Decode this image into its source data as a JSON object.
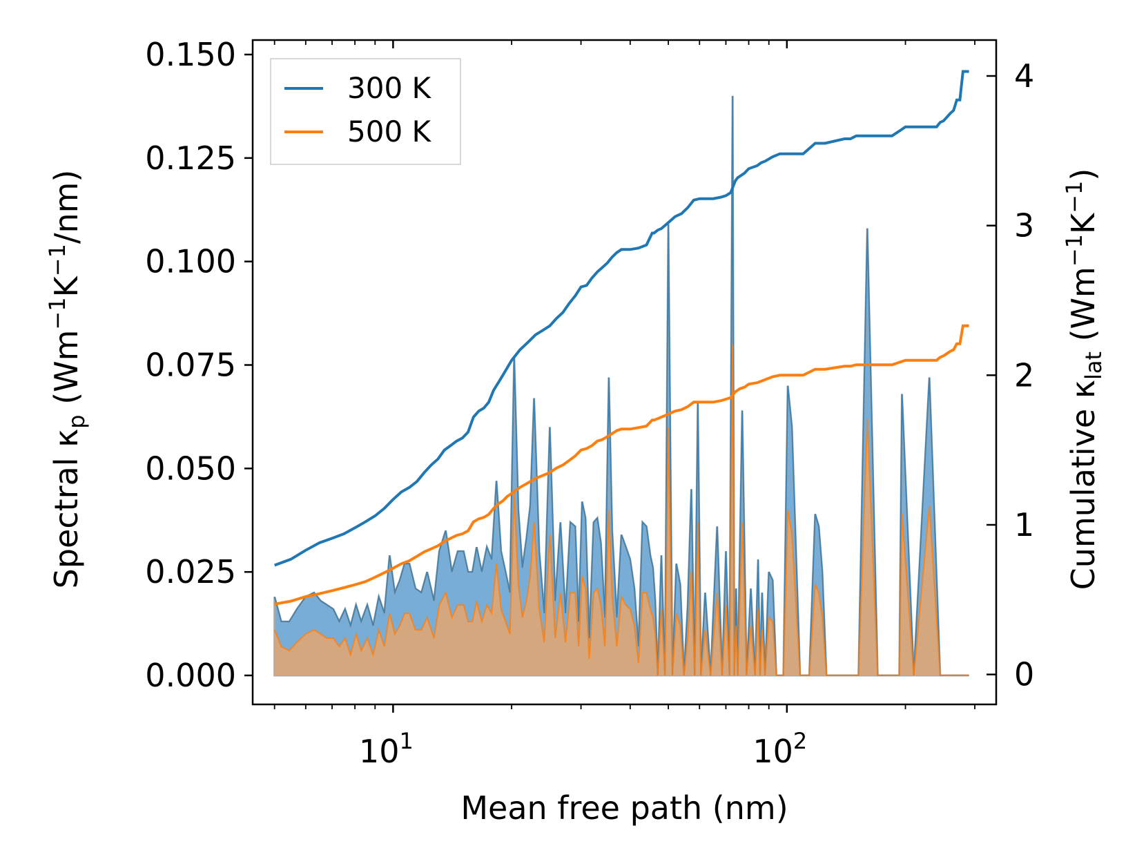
{
  "chart_data": {
    "type": "line+area",
    "title": "",
    "xlabel": "Mean free path (nm)",
    "xscale": "log",
    "xlim": [
      4.4,
      340
    ],
    "x_ticks": [
      {
        "value": 10,
        "label_base": "10",
        "label_exp": "1"
      },
      {
        "value": 100,
        "label_base": "10",
        "label_exp": "2"
      }
    ],
    "ylabel_left": {
      "pre": "Spectral κ",
      "sub": "p",
      "mid": " (Wm",
      "sup1": "−1",
      "k": "K",
      "sup2": "−1",
      "post": "/nm)"
    },
    "ylabel_right": {
      "pre": "Cumulative κ",
      "sub": "lat",
      "mid": " (Wm",
      "sup1": "−1",
      "k": "K",
      "sup2": "−1",
      "post": ")"
    },
    "ylim_left": [
      -0.007,
      0.1535
    ],
    "ylim_right": [
      -0.2,
      4.24
    ],
    "y_ticks_left": [
      "0.000",
      "0.025",
      "0.050",
      "0.075",
      "0.100",
      "0.125",
      "0.150"
    ],
    "y_ticks_right": [
      "0",
      "1",
      "2",
      "3",
      "4"
    ],
    "legend": {
      "placement": "top-left",
      "entries": [
        "300 K",
        "500 K"
      ]
    },
    "colors": {
      "300K": "#1f77b4",
      "500K": "#ff7f0e",
      "fill300": "#5f9fd0",
      "fill500": "#d9a679"
    },
    "spectral": {
      "x": [
        5.0,
        5.2,
        5.45,
        5.7,
        6.0,
        6.3,
        6.55,
        6.8,
        7.05,
        7.3,
        7.55,
        7.8,
        8.05,
        8.3,
        8.6,
        8.9,
        9.2,
        9.5,
        9.8,
        10.1,
        10.4,
        10.7,
        11.0,
        11.4,
        11.8,
        12.2,
        12.7,
        13.1,
        13.6,
        14.1,
        14.6,
        15.1,
        15.5,
        15.9,
        16.3,
        16.8,
        17.3,
        17.8,
        18.3,
        18.8,
        19.3,
        19.8,
        20.3,
        20.8,
        21.3,
        21.8,
        22.3,
        22.8,
        23.5,
        24.2,
        25.0,
        25.8,
        26.6,
        27.4,
        28.2,
        29.0,
        29.6,
        30.2,
        30.8,
        31.5,
        32.3,
        33.0,
        33.7,
        34.5,
        35.3,
        36.0,
        37.0,
        38.0,
        39.0,
        40.0,
        41.0,
        42.0,
        43.0,
        44.0,
        45.0,
        45.7,
        46.3,
        47.0,
        48.0,
        49.0,
        50.0,
        51.2,
        52.4,
        53.6,
        54.8,
        56.0,
        57.2,
        58.3,
        59.4,
        60.5,
        62.0,
        64.0,
        66.5,
        68.5,
        70.0,
        71.5,
        72.8,
        73.5,
        74.3,
        75.0,
        77.0,
        79.0,
        81.0,
        83.0,
        84.5,
        85.5,
        86.5,
        88.0,
        90.0,
        92.0,
        94.0,
        96.0,
        98.0,
        100.5,
        103.0,
        108.0,
        114.0,
        118.0,
        120.5,
        123.0,
        126.0,
        132.0,
        138.0,
        141.5,
        145.0,
        148.0,
        152.0,
        160.0,
        170.0,
        180.0,
        187.0,
        190.0,
        193.0,
        196.0,
        210.0,
        230.0,
        245.0,
        250.0,
        255.0,
        262.0,
        266.0,
        270.0,
        274.0,
        280.0,
        285.0,
        290.0
      ],
      "k300": [
        0.019,
        0.013,
        0.013,
        0.016,
        0.019,
        0.02,
        0.018,
        0.017,
        0.016,
        0.013,
        0.016,
        0.012,
        0.017,
        0.013,
        0.017,
        0.012,
        0.019,
        0.015,
        0.029,
        0.02,
        0.023,
        0.027,
        0.027,
        0.021,
        0.02,
        0.025,
        0.018,
        0.03,
        0.035,
        0.025,
        0.03,
        0.03,
        0.025,
        0.025,
        0.031,
        0.025,
        0.031,
        0.028,
        0.047,
        0.03,
        0.025,
        0.02,
        0.077,
        0.04,
        0.026,
        0.033,
        0.041,
        0.067,
        0.03,
        0.015,
        0.06,
        0.018,
        0.037,
        0.015,
        0.037,
        0.036,
        0.013,
        0.042,
        0.038,
        0.009,
        0.037,
        0.038,
        0.032,
        0.014,
        0.072,
        0.035,
        0.014,
        0.034,
        0.031,
        0.028,
        0.021,
        0.007,
        0.037,
        0.036,
        0.029,
        0.026,
        0.018,
        0.0,
        0.029,
        0.0,
        0.109,
        0.0,
        0.027,
        0.022,
        0.0,
        0.017,
        0.045,
        0.0,
        0.066,
        0.0,
        0.02,
        0.0,
        0.036,
        0.0,
        0.03,
        0.0,
        0.14,
        0.0,
        0.021,
        0.0,
        0.064,
        0.0,
        0.021,
        0.0,
        0.028,
        0.0,
        0.02,
        0.0,
        0.025,
        0.023,
        0.0,
        0.0,
        0.0,
        0.07,
        0.06,
        0.0,
        0.0,
        0.039,
        0.036,
        0.025,
        0.0,
        0.0,
        0.0,
        0.0,
        0.0,
        0.0,
        0.0,
        0.108,
        0.0,
        0.0,
        0.0,
        0.0,
        0.0,
        0.068,
        0.0,
        0.072,
        0.0,
        0.0,
        0.0,
        0.0,
        0.0,
        0.0,
        0.0,
        0.0,
        0.0,
        0.0,
        0.0,
        0.0,
        0.0,
        0.0,
        0.0
      ],
      "k500": [
        0.011,
        0.007,
        0.006,
        0.008,
        0.01,
        0.011,
        0.01,
        0.009,
        0.009,
        0.007,
        0.009,
        0.005,
        0.01,
        0.006,
        0.009,
        0.005,
        0.011,
        0.007,
        0.015,
        0.01,
        0.012,
        0.015,
        0.015,
        0.011,
        0.011,
        0.014,
        0.009,
        0.017,
        0.02,
        0.014,
        0.017,
        0.017,
        0.013,
        0.013,
        0.018,
        0.013,
        0.017,
        0.015,
        0.027,
        0.016,
        0.013,
        0.01,
        0.044,
        0.022,
        0.014,
        0.018,
        0.024,
        0.037,
        0.016,
        0.008,
        0.034,
        0.009,
        0.02,
        0.008,
        0.02,
        0.02,
        0.007,
        0.024,
        0.021,
        0.004,
        0.02,
        0.021,
        0.017,
        0.007,
        0.04,
        0.019,
        0.007,
        0.019,
        0.017,
        0.016,
        0.012,
        0.003,
        0.02,
        0.02,
        0.016,
        0.014,
        0.01,
        0.0,
        0.016,
        0.0,
        0.06,
        0.0,
        0.015,
        0.012,
        0.0,
        0.009,
        0.025,
        0.0,
        0.037,
        0.0,
        0.011,
        0.0,
        0.02,
        0.0,
        0.017,
        0.0,
        0.08,
        0.0,
        0.012,
        0.0,
        0.037,
        0.0,
        0.012,
        0.0,
        0.016,
        0.0,
        0.011,
        0.0,
        0.014,
        0.013,
        0.0,
        0.0,
        0.0,
        0.04,
        0.034,
        0.0,
        0.0,
        0.022,
        0.02,
        0.014,
        0.0,
        0.0,
        0.0,
        0.0,
        0.0,
        0.0,
        0.0,
        0.062,
        0.0,
        0.0,
        0.0,
        0.0,
        0.0,
        0.039,
        0.0,
        0.041,
        0.0,
        0.0,
        0.0,
        0.0,
        0.0,
        0.0,
        0.0,
        0.0,
        0.0,
        0.0,
        0.0,
        0.0,
        0.0,
        0.0,
        0.0
      ]
    },
    "cumulative": {
      "k300_x": [
        5.0,
        5.5,
        6.0,
        6.5,
        7.0,
        7.5,
        8.0,
        8.5,
        9.0,
        9.5,
        10.0,
        10.5,
        11.0,
        11.5,
        12.0,
        12.5,
        13.0,
        13.5,
        14.0,
        14.5,
        15.0,
        15.5,
        16.0,
        16.5,
        17.0,
        17.5,
        18.0,
        18.5,
        19.0,
        19.5,
        20.0,
        21.0,
        22.0,
        23.0,
        24.0,
        25.0,
        26.0,
        27.0,
        28.0,
        29.0,
        30.0,
        31.0,
        32.0,
        33.0,
        34.0,
        35.0,
        36.0,
        37.0,
        38.0,
        40.0,
        42.0,
        44.0,
        45.5,
        46.0,
        47.0,
        48.0,
        50.0,
        52.0,
        54.0,
        56.0,
        58.0,
        60.0,
        62.0,
        65.0,
        68.0,
        70.0,
        72.0,
        74.0,
        75.0,
        76.0,
        78.0,
        80.0,
        84.0,
        86.0,
        88.0,
        92.0,
        96.0,
        100.0,
        110.0,
        118.0,
        120.0,
        125.0,
        140.0,
        145.0,
        150.0,
        170.0,
        185.0,
        190.0,
        195.0,
        200.0,
        240.0,
        245.0,
        250.0,
        260.0,
        265.0,
        270.0,
        275.0,
        280.0,
        290.0
      ],
      "k300_y": [
        0.73,
        0.77,
        0.83,
        0.88,
        0.91,
        0.94,
        0.98,
        1.02,
        1.06,
        1.11,
        1.17,
        1.22,
        1.25,
        1.29,
        1.35,
        1.4,
        1.44,
        1.5,
        1.53,
        1.56,
        1.58,
        1.62,
        1.72,
        1.76,
        1.78,
        1.82,
        1.9,
        1.95,
        2.0,
        2.05,
        2.1,
        2.17,
        2.22,
        2.27,
        2.3,
        2.33,
        2.38,
        2.42,
        2.48,
        2.53,
        2.59,
        2.6,
        2.65,
        2.69,
        2.72,
        2.75,
        2.79,
        2.82,
        2.84,
        2.84,
        2.85,
        2.87,
        2.95,
        2.95,
        2.97,
        2.98,
        3.02,
        3.06,
        3.08,
        3.12,
        3.17,
        3.18,
        3.18,
        3.18,
        3.19,
        3.2,
        3.22,
        3.3,
        3.32,
        3.33,
        3.35,
        3.38,
        3.4,
        3.42,
        3.43,
        3.46,
        3.48,
        3.48,
        3.48,
        3.55,
        3.55,
        3.55,
        3.58,
        3.58,
        3.6,
        3.6,
        3.6,
        3.62,
        3.64,
        3.66,
        3.66,
        3.69,
        3.7,
        3.75,
        3.77,
        3.84,
        3.84,
        4.03,
        4.03
      ],
      "k500_x": [
        5.0,
        5.5,
        6.0,
        6.5,
        7.0,
        7.5,
        8.0,
        8.5,
        9.0,
        9.5,
        10.0,
        10.5,
        11.0,
        11.5,
        12.0,
        12.5,
        13.0,
        13.5,
        14.0,
        14.5,
        15.0,
        15.5,
        16.0,
        16.5,
        17.0,
        17.5,
        18.0,
        18.5,
        19.0,
        19.5,
        20.0,
        21.0,
        22.0,
        23.0,
        24.0,
        25.0,
        26.0,
        27.0,
        28.0,
        29.0,
        30.0,
        31.0,
        32.0,
        33.0,
        34.0,
        35.0,
        36.0,
        37.0,
        38.0,
        40.0,
        42.0,
        44.0,
        45.5,
        46.0,
        47.0,
        48.0,
        50.0,
        52.0,
        54.0,
        56.0,
        58.0,
        60.0,
        62.0,
        65.0,
        68.0,
        70.0,
        72.0,
        74.0,
        75.0,
        76.0,
        78.0,
        80.0,
        84.0,
        86.0,
        88.0,
        92.0,
        96.0,
        100.0,
        110.0,
        118.0,
        120.0,
        125.0,
        140.0,
        145.0,
        150.0,
        170.0,
        185.0,
        190.0,
        195.0,
        200.0,
        240.0,
        245.0,
        250.0,
        260.0,
        265.0,
        270.0,
        275.0,
        280.0,
        290.0
      ],
      "k500_y": [
        0.47,
        0.49,
        0.52,
        0.54,
        0.56,
        0.58,
        0.6,
        0.62,
        0.65,
        0.68,
        0.71,
        0.74,
        0.76,
        0.79,
        0.82,
        0.84,
        0.86,
        0.89,
        0.91,
        0.93,
        0.94,
        0.96,
        1.02,
        1.04,
        1.05,
        1.07,
        1.11,
        1.14,
        1.16,
        1.19,
        1.21,
        1.25,
        1.28,
        1.31,
        1.33,
        1.35,
        1.38,
        1.4,
        1.43,
        1.46,
        1.5,
        1.51,
        1.53,
        1.56,
        1.57,
        1.59,
        1.61,
        1.63,
        1.64,
        1.64,
        1.65,
        1.66,
        1.7,
        1.7,
        1.71,
        1.72,
        1.74,
        1.76,
        1.77,
        1.79,
        1.82,
        1.82,
        1.82,
        1.82,
        1.83,
        1.84,
        1.85,
        1.89,
        1.9,
        1.91,
        1.92,
        1.94,
        1.95,
        1.96,
        1.97,
        1.99,
        2.0,
        2.0,
        2.0,
        2.04,
        2.04,
        2.04,
        2.06,
        2.06,
        2.07,
        2.07,
        2.07,
        2.08,
        2.09,
        2.1,
        2.1,
        2.12,
        2.13,
        2.16,
        2.17,
        2.21,
        2.21,
        2.33,
        2.33
      ]
    }
  }
}
